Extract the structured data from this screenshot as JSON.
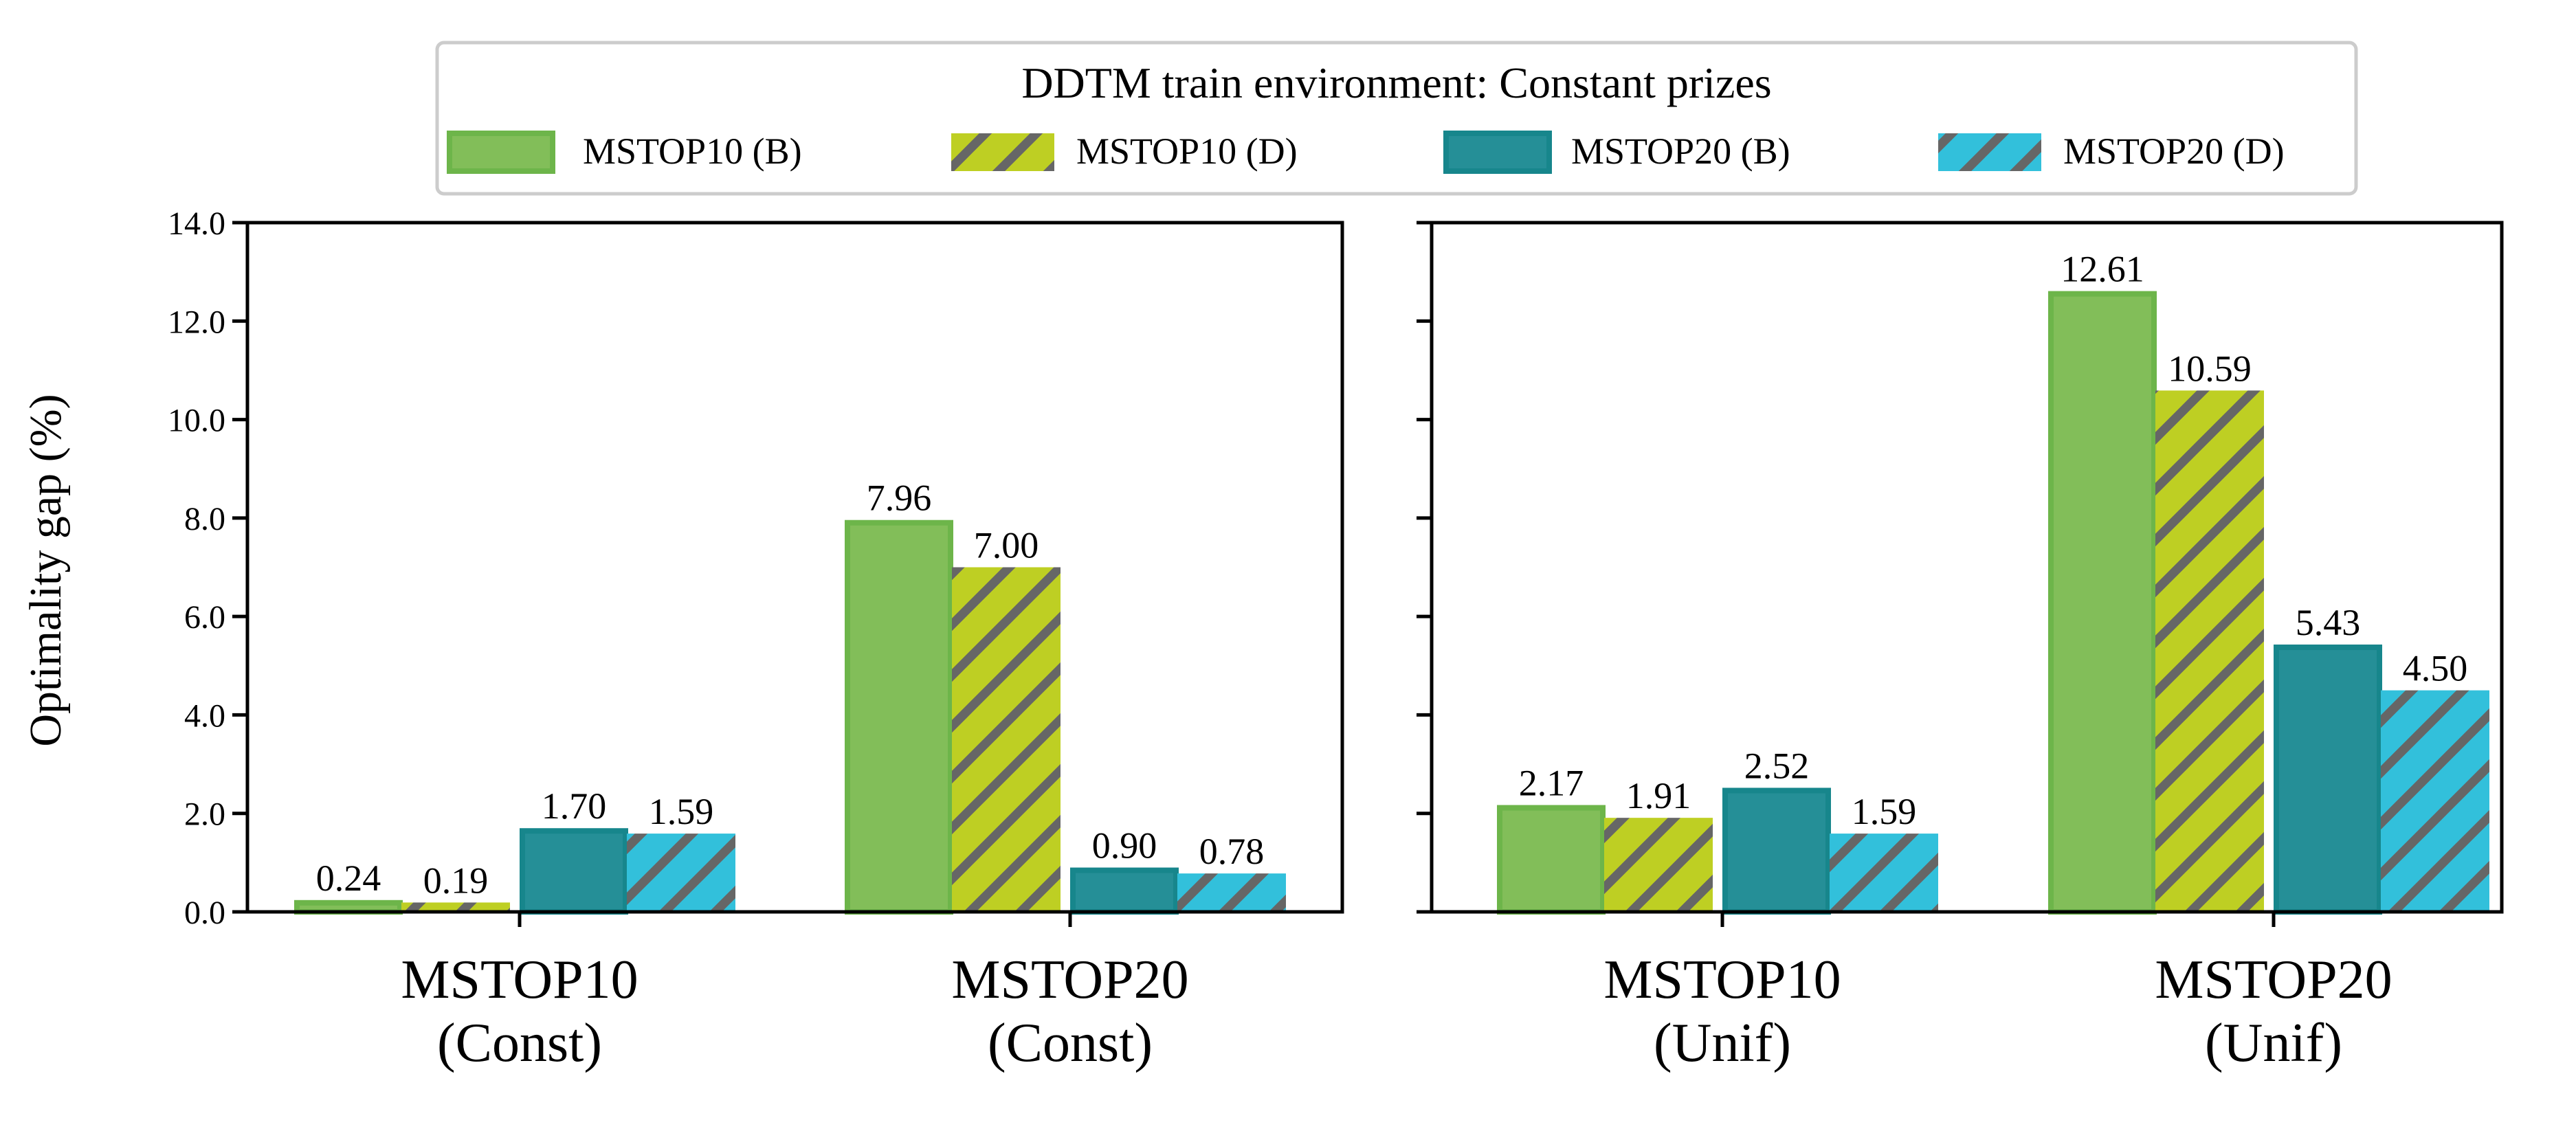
{
  "chart_data": {
    "type": "bar",
    "legend": {
      "title": "DDTM train environment: Constant prizes",
      "placement": "top-center",
      "entries": [
        "MSTOP10 (B)",
        "MSTOP10 (D)",
        "MSTOP20 (B)",
        "MSTOP20 (D)"
      ]
    },
    "ylabel": "Optimality gap (%)",
    "ylim": [
      0,
      14
    ],
    "yticks": [
      "0.0",
      "2.0",
      "4.0",
      "6.0",
      "8.0",
      "10.0",
      "12.0",
      "14.0"
    ],
    "grid": false,
    "series_styles": [
      {
        "fill": "#82BE59",
        "edge": "#6DB54A",
        "hatch": false
      },
      {
        "fill": "#BECF23",
        "edge": "#BECF23",
        "hatch": true
      },
      {
        "fill": "#258F97",
        "edge": "#17868C",
        "hatch": false
      },
      {
        "fill": "#32C0DB",
        "edge": "#32C0DB",
        "hatch": true
      }
    ],
    "hatch_color": "#666666",
    "panels": [
      {
        "categories": [
          "MSTOP10\n(Const)",
          "MSTOP20\n(Const)"
        ],
        "series": [
          {
            "name": "MSTOP10 (B)",
            "values": [
              0.24,
              7.96
            ]
          },
          {
            "name": "MSTOP10 (D)",
            "values": [
              0.19,
              7.0
            ]
          },
          {
            "name": "MSTOP20 (B)",
            "values": [
              1.7,
              0.9
            ]
          },
          {
            "name": "MSTOP20 (D)",
            "values": [
              1.59,
              0.78
            ]
          }
        ]
      },
      {
        "categories": [
          "MSTOP10\n(Unif)",
          "MSTOP20\n(Unif)"
        ],
        "series": [
          {
            "name": "MSTOP10 (B)",
            "values": [
              2.17,
              12.61
            ]
          },
          {
            "name": "MSTOP10 (D)",
            "values": [
              1.91,
              10.59
            ]
          },
          {
            "name": "MSTOP20 (B)",
            "values": [
              2.52,
              5.43
            ]
          },
          {
            "name": "MSTOP20 (D)",
            "values": [
              1.59,
              4.5
            ]
          }
        ]
      }
    ]
  }
}
